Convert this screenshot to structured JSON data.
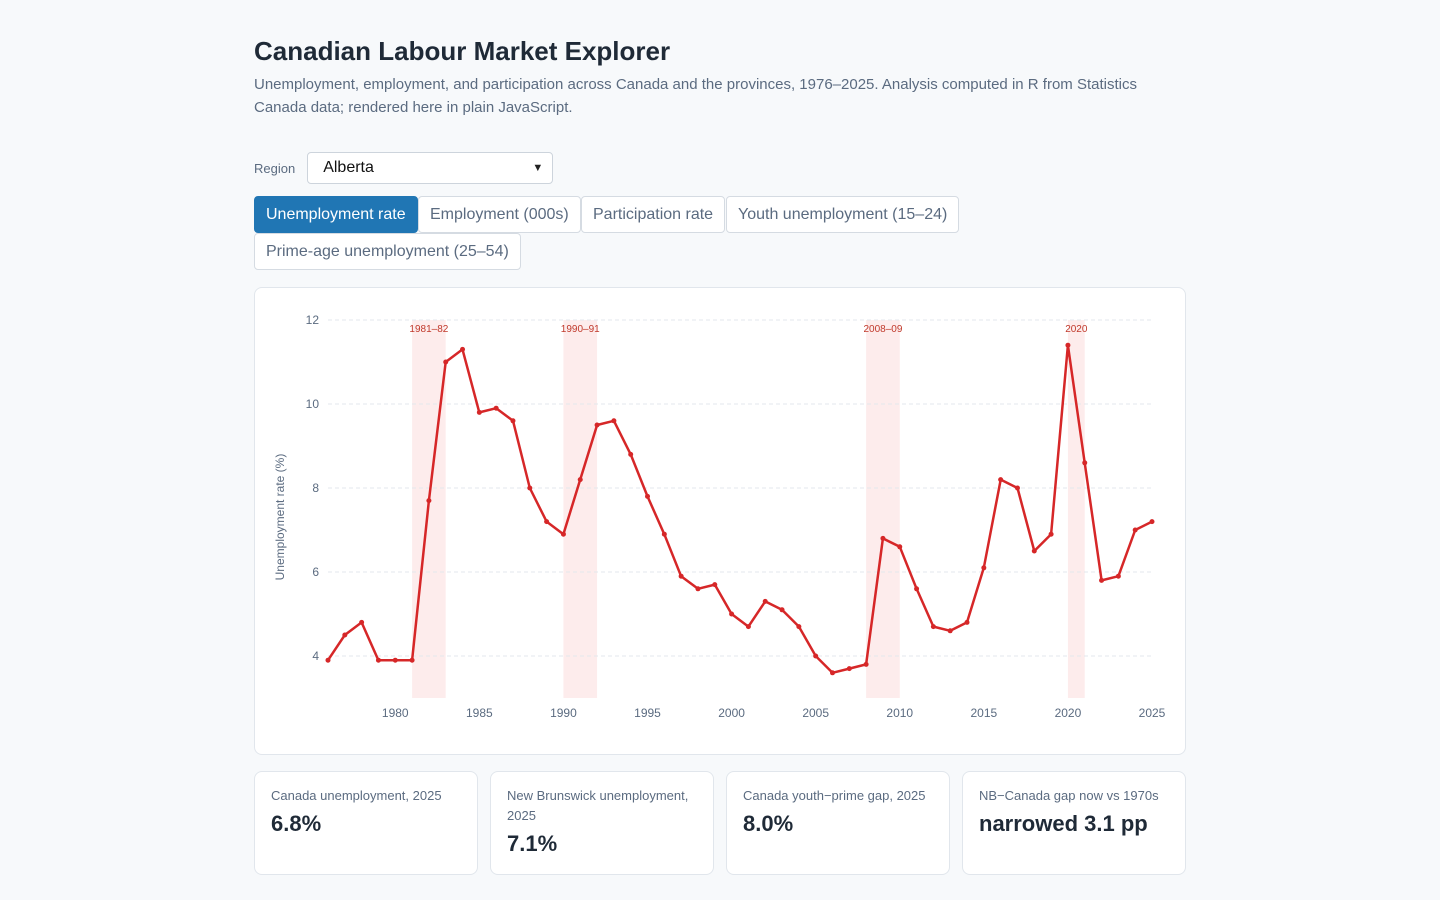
{
  "header": {
    "title": "Canadian Labour Market Explorer",
    "subtitle": "Unemployment, employment, and participation across Canada and the provinces, 1976–2025. Analysis computed in R from Statistics Canada data; rendered here in plain JavaScript."
  },
  "controls": {
    "region_label": "Region",
    "region_value": "Alberta"
  },
  "tabs": [
    {
      "label": "Unemployment rate",
      "active": true
    },
    {
      "label": "Employment (000s)",
      "active": false
    },
    {
      "label": "Participation rate",
      "active": false
    },
    {
      "label": "Youth unemployment (15–24)",
      "active": false
    },
    {
      "label": "Prime-age unemployment (25–54)",
      "active": false
    }
  ],
  "chart_data": {
    "type": "line",
    "title": "",
    "xlabel": "",
    "ylabel": "Unemployment rate (%)",
    "xlim": [
      1976,
      2025
    ],
    "ylim": [
      3,
      12
    ],
    "yticks": [
      4,
      6,
      8,
      10,
      12
    ],
    "xticks": [
      1980,
      1985,
      1990,
      1995,
      2000,
      2005,
      2010,
      2015,
      2020,
      2025
    ],
    "grid": true,
    "line_color": "#d62728",
    "recession_color": "#fdecec",
    "recessions": [
      {
        "label": "1981–82",
        "start": 1981,
        "end": 1983
      },
      {
        "label": "1990–91",
        "start": 1990,
        "end": 1992
      },
      {
        "label": "2008–09",
        "start": 2008,
        "end": 2010
      },
      {
        "label": "2020",
        "start": 2020,
        "end": 2021
      }
    ],
    "x": [
      1976,
      1977,
      1978,
      1979,
      1980,
      1981,
      1982,
      1983,
      1984,
      1985,
      1986,
      1987,
      1988,
      1989,
      1990,
      1991,
      1992,
      1993,
      1994,
      1995,
      1996,
      1997,
      1998,
      1999,
      2000,
      2001,
      2002,
      2003,
      2004,
      2005,
      2006,
      2007,
      2008,
      2009,
      2010,
      2011,
      2012,
      2013,
      2014,
      2015,
      2016,
      2017,
      2018,
      2019,
      2020,
      2021,
      2022,
      2023,
      2024,
      2025
    ],
    "series": [
      {
        "values": [
          3.9,
          4.5,
          4.8,
          3.9,
          3.9,
          3.9,
          7.7,
          11.0,
          11.3,
          9.8,
          9.9,
          9.6,
          8.0,
          7.2,
          6.9,
          8.2,
          9.5,
          9.6,
          8.8,
          7.8,
          6.9,
          5.9,
          5.6,
          5.7,
          5.0,
          4.7,
          5.3,
          5.1,
          4.7,
          4.0,
          3.6,
          3.7,
          3.8,
          6.8,
          6.6,
          5.6,
          4.7,
          4.6,
          4.8,
          6.1,
          8.2,
          8.0,
          6.5,
          6.9,
          11.4,
          8.6,
          5.8,
          5.9,
          7.0,
          7.2
        ]
      }
    ]
  },
  "stats": [
    {
      "label": "Canada unemployment, 2025",
      "value": "6.8%"
    },
    {
      "label": "New Brunswick unemployment, 2025",
      "value": "7.1%"
    },
    {
      "label": "Canada youth−prime gap, 2025",
      "value": "8.0%"
    },
    {
      "label": "NB−Canada gap now vs 1970s",
      "value": "narrowed 3.1 pp"
    }
  ]
}
